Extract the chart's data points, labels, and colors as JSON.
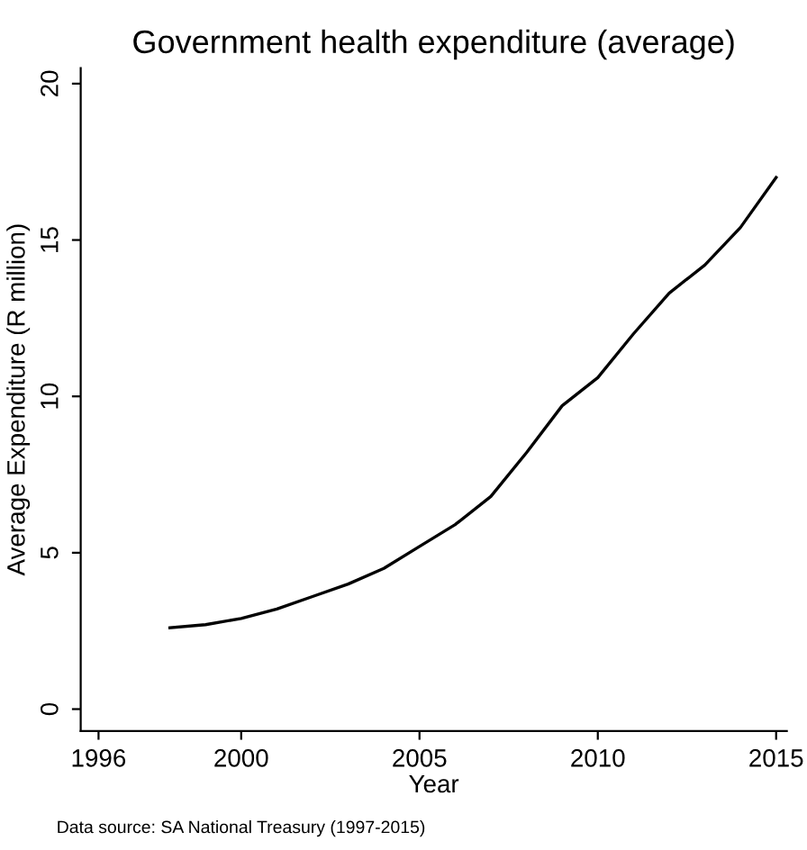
{
  "chart_data": {
    "type": "line",
    "title": "Government health expenditure (average)",
    "xlabel": "Year",
    "ylabel": "Average Expenditure (R million)",
    "annotations": [
      "Data source: SA National Treasury (1997-2015)"
    ],
    "x": [
      1998,
      1999,
      2000,
      2001,
      2002,
      2003,
      2004,
      2005,
      2006,
      2007,
      2008,
      2009,
      2010,
      2011,
      2012,
      2013,
      2014,
      2015
    ],
    "series": [
      {
        "color": "#000000",
        "values": [
          2.6,
          2.7,
          2.9,
          3.2,
          3.6,
          4.0,
          4.5,
          5.2,
          5.9,
          6.8,
          8.2,
          9.7,
          10.6,
          12.0,
          13.3,
          14.2,
          15.4,
          17.0
        ]
      }
    ],
    "xlim": [
      1995.5,
      2015.3
    ],
    "ylim": [
      -0.7,
      20.5
    ],
    "xticks": [
      1996,
      2000,
      2005,
      2010,
      2015
    ],
    "yticks": [
      0,
      5,
      10,
      15,
      20
    ],
    "grid": false,
    "legend": false,
    "marker": "none",
    "line_style": "solid"
  }
}
